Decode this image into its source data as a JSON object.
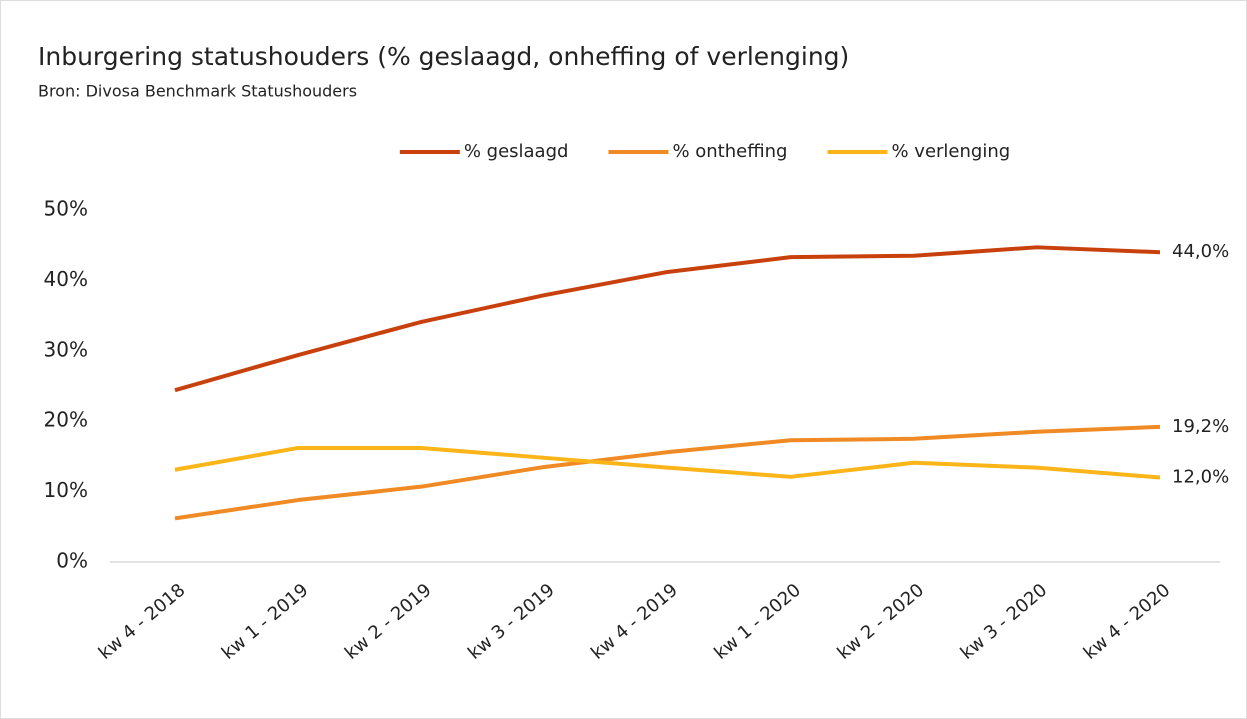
{
  "chart_data": {
    "type": "line",
    "title": "Inburgering statushouders (% geslaagd, onheffing of verlenging)",
    "subtitle": "Bron: Divosa Benchmark Statushouders",
    "categories": [
      "kw 4 - 2018",
      "kw 1 - 2019",
      "kw 2 - 2019",
      "kw 3 - 2019",
      "kw 4 - 2019",
      "kw 1 - 2020",
      "kw 2 - 2020",
      "kw 3 - 2020",
      "kw 4 - 2020"
    ],
    "series": [
      {
        "name": "% geslaagd",
        "color": "#c8410c",
        "values": [
          24.4,
          29.4,
          34.1,
          37.9,
          41.2,
          43.3,
          43.5,
          44.7,
          44.0
        ],
        "value_labels": [
          null,
          null,
          null,
          null,
          null,
          null,
          null,
          null,
          "44,0%"
        ]
      },
      {
        "name": "% ontheffing",
        "color": "#f08a24",
        "values": [
          6.2,
          8.8,
          10.7,
          13.5,
          15.6,
          17.3,
          17.5,
          18.5,
          19.2
        ],
        "value_labels": [
          null,
          null,
          null,
          null,
          null,
          null,
          null,
          null,
          "19,2%"
        ]
      },
      {
        "name": "% verlenging",
        "color": "#fbb519",
        "values": [
          13.1,
          16.2,
          16.2,
          14.8,
          13.4,
          12.1,
          14.1,
          13.4,
          12.0
        ],
        "value_labels": [
          null,
          null,
          null,
          null,
          null,
          null,
          null,
          null,
          "12,0%"
        ]
      }
    ],
    "ylim": [
      0,
      50
    ],
    "yticks": [
      {
        "value": 0,
        "label": "0%"
      },
      {
        "value": 10,
        "label": "10%"
      },
      {
        "value": 20,
        "label": "20%"
      },
      {
        "value": 30,
        "label": "30%"
      },
      {
        "value": 40,
        "label": "40%"
      },
      {
        "value": 50,
        "label": "50%"
      }
    ],
    "grid": false,
    "legend": "top"
  }
}
